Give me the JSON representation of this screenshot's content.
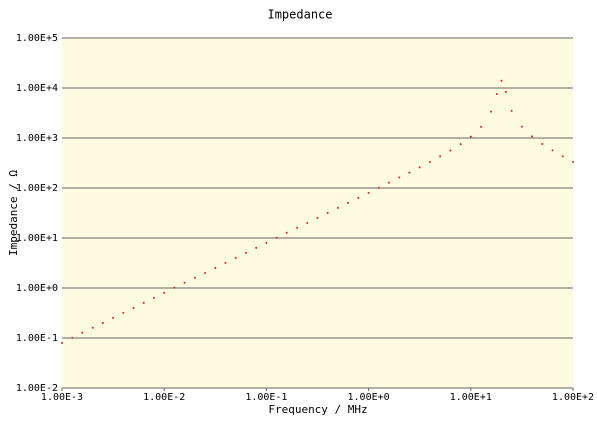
{
  "chart_data": {
    "type": "scatter",
    "title": "Impedance",
    "x_label": "Frequency / MHz",
    "y_label": "Impedance / Ω",
    "x": [
      0.001,
      0.00126,
      0.00158,
      0.002,
      0.00251,
      0.00316,
      0.00398,
      0.00501,
      0.00631,
      0.00794,
      0.01,
      0.0126,
      0.0158,
      0.02,
      0.0251,
      0.0316,
      0.0398,
      0.0501,
      0.0631,
      0.0794,
      0.1,
      0.126,
      0.158,
      0.2,
      0.251,
      0.316,
      0.398,
      0.501,
      0.631,
      0.794,
      1,
      1.26,
      1.58,
      2,
      2.51,
      3.16,
      3.98,
      5.01,
      6.31,
      7.94,
      10,
      12.6,
      15.8,
      18,
      19.95,
      22,
      25.1,
      31.6,
      39.8,
      50.1,
      63.1,
      79.4,
      100
    ],
    "series": [
      {
        "name": "Impedance",
        "color": "#e02020",
        "values": [
          0.08,
          0.101,
          0.127,
          0.16,
          0.2,
          0.253,
          0.318,
          0.401,
          0.505,
          0.635,
          0.8,
          1.01,
          1.27,
          1.6,
          2.0,
          2.53,
          3.18,
          4.01,
          5.05,
          6.35,
          8,
          10.1,
          12.7,
          16,
          20,
          25.3,
          31.8,
          40.1,
          50.5,
          63.5,
          80,
          101,
          128,
          162,
          203,
          259,
          331,
          428,
          561,
          754,
          1067,
          1672,
          3362,
          7579,
          14000,
          8381,
          3492,
          1685,
          1076,
          759,
          564,
          430,
          333
        ]
      }
    ],
    "xscale": "log",
    "yscale": "log",
    "xlim": [
      0.001,
      100
    ],
    "ylim": [
      0.01,
      100000
    ],
    "xticks": [
      {
        "value": 0.001,
        "label": "1.00E-3"
      },
      {
        "value": 0.01,
        "label": "1.00E-2"
      },
      {
        "value": 0.1,
        "label": "1.00E-1"
      },
      {
        "value": 1,
        "label": "1.00E+0"
      },
      {
        "value": 10,
        "label": "1.00E+1"
      },
      {
        "value": 100,
        "label": "1.00E+2"
      }
    ],
    "yticks": [
      {
        "value": 100000,
        "label": "1.00E+5"
      },
      {
        "value": 10000,
        "label": "1.00E+4"
      },
      {
        "value": 1000,
        "label": "1.00E+3"
      },
      {
        "value": 100,
        "label": "1.00E+2"
      },
      {
        "value": 10,
        "label": "1.00E+1"
      },
      {
        "value": 1,
        "label": "1.00E+0"
      },
      {
        "value": 0.1,
        "label": "1.00E-1"
      },
      {
        "value": 0.01,
        "label": "1.00E-2"
      }
    ],
    "grid": true
  }
}
